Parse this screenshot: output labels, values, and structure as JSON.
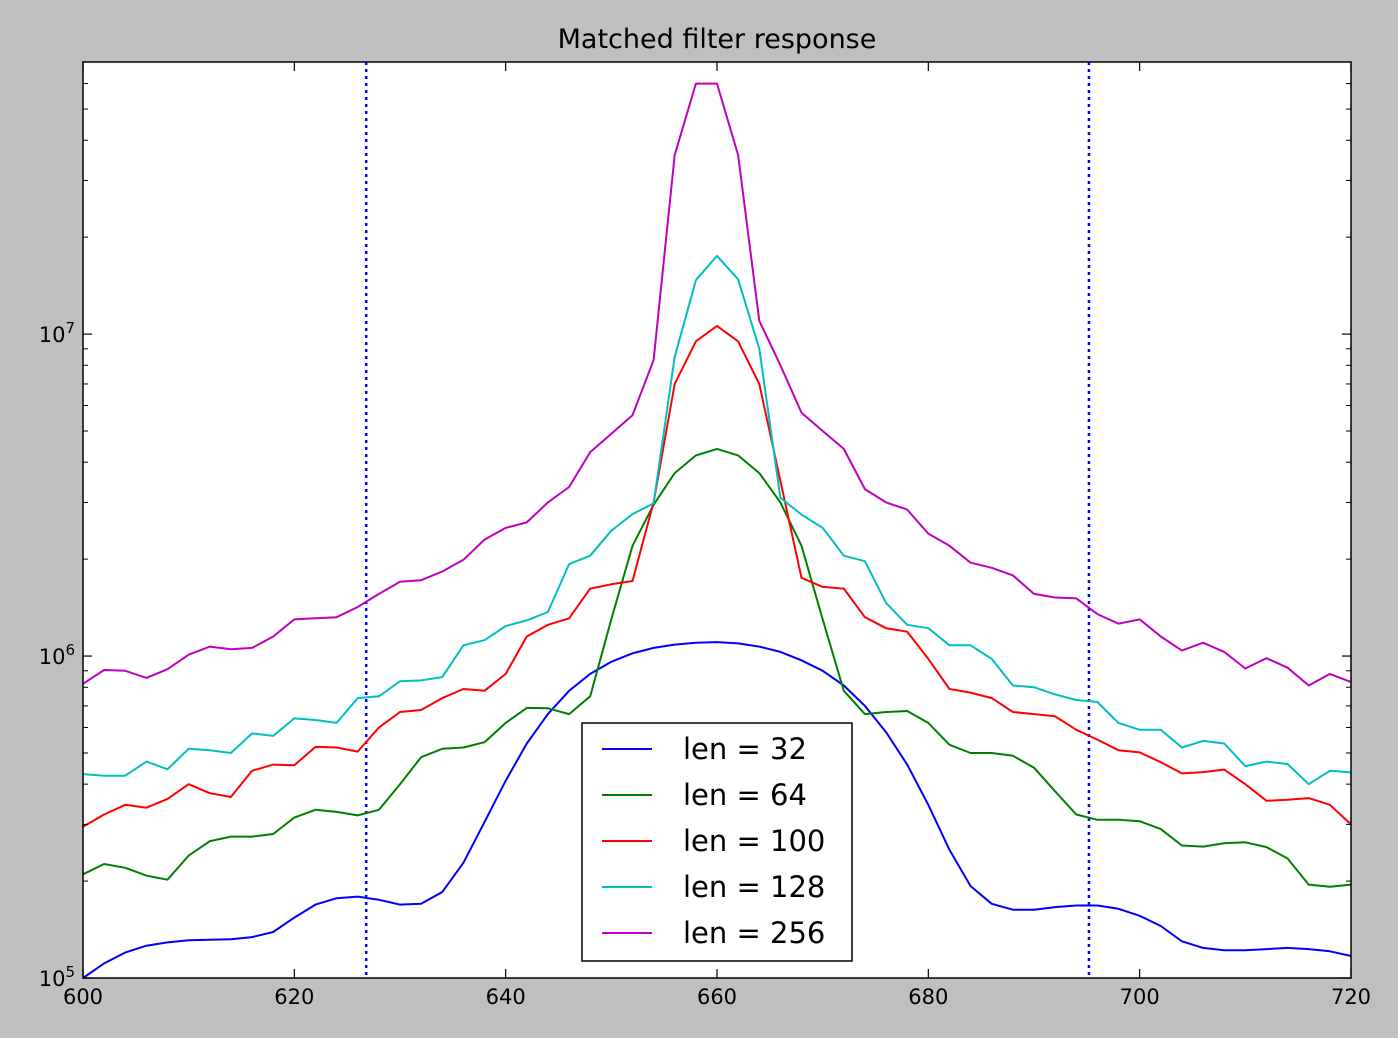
{
  "chart_data": {
    "type": "line",
    "title": "Matched filter response",
    "xlabel": "",
    "ylabel": "",
    "xlim": [
      600,
      720
    ],
    "ylim": [
      100000,
      70000000
    ],
    "yscale": "log",
    "grid": false,
    "legend_position": "lower-center",
    "x_ticks": [
      600,
      620,
      640,
      660,
      680,
      700,
      720
    ],
    "x_tick_labels": [
      "600",
      "620",
      "640",
      "660",
      "680",
      "700",
      "720"
    ],
    "y_ticks": [
      {
        "value": 100000,
        "base": "10",
        "exp": "5"
      },
      {
        "value": 1000000,
        "base": "10",
        "exp": "6"
      },
      {
        "value": 10000000,
        "base": "10",
        "exp": "7"
      }
    ],
    "vlines": [
      {
        "x": 626.8,
        "color": "#0000ff",
        "style": "dotted"
      },
      {
        "x": 695.2,
        "color": "#0000ff",
        "style": "dotted"
      }
    ],
    "x": [
      600,
      602,
      604,
      606,
      608,
      610,
      612,
      614,
      616,
      618,
      620,
      622,
      624,
      626,
      628,
      630,
      632,
      634,
      636,
      638,
      640,
      642,
      644,
      646,
      648,
      650,
      652,
      654,
      656,
      658,
      660,
      662,
      664,
      666,
      668,
      670,
      672,
      674,
      676,
      678,
      680,
      682,
      684,
      686,
      688,
      690,
      692,
      694,
      696,
      698,
      700,
      702,
      704,
      706,
      708,
      710,
      712,
      714,
      716,
      718,
      720
    ],
    "series": [
      {
        "name": "len = 32",
        "color": "#0000ff",
        "values": [
          100000,
          111000,
          120000,
          126000,
          129000,
          131000,
          131500,
          132000,
          134000,
          139000,
          154000,
          169000,
          177000,
          179000,
          175000,
          169000,
          170000,
          185000,
          228000,
          305000,
          410000,
          535000,
          660000,
          780000,
          880000,
          960000,
          1020000,
          1060000,
          1085000,
          1100000,
          1105000,
          1095000,
          1070000,
          1030000,
          970000,
          900000,
          810000,
          700000,
          580000,
          460000,
          345000,
          250000,
          193000,
          170000,
          163000,
          163000,
          166000,
          168000,
          168000,
          164000,
          156000,
          145000,
          130000,
          124000,
          122000,
          122000,
          123000,
          124000,
          123000,
          121000,
          117000
        ]
      },
      {
        "name": "len = 64",
        "color": "#008000",
        "values": [
          210000,
          226000,
          220000,
          208000,
          202000,
          240000,
          266000,
          275000,
          275000,
          280000,
          315000,
          333000,
          328000,
          320000,
          333000,
          400000,
          485000,
          515000,
          520000,
          540000,
          620000,
          690000,
          688000,
          660000,
          750000,
          1300000,
          2200000,
          2950000,
          3700000,
          4200000,
          4400000,
          4200000,
          3700000,
          3000000,
          2200000,
          1300000,
          780000,
          660000,
          670000,
          675000,
          620000,
          530000,
          500000,
          500000,
          490000,
          450000,
          380000,
          322000,
          310000,
          310000,
          307000,
          290000,
          258000,
          256000,
          262000,
          264000,
          255000,
          235000,
          195000,
          192000,
          195000
        ]
      },
      {
        "name": "len = 100",
        "color": "#ff0000",
        "values": [
          295000,
          322000,
          345000,
          338000,
          360000,
          400000,
          375000,
          365000,
          440000,
          460000,
          458000,
          522000,
          520000,
          505000,
          600000,
          670000,
          680000,
          740000,
          790000,
          780000,
          880000,
          1150000,
          1250000,
          1310000,
          1620000,
          1670000,
          1710000,
          3000000,
          7000000,
          9500000,
          10600000,
          9500000,
          7000000,
          3500000,
          1750000,
          1640000,
          1620000,
          1320000,
          1220000,
          1190000,
          980000,
          790000,
          770000,
          740000,
          670000,
          660000,
          650000,
          590000,
          550000,
          510000,
          502000,
          468000,
          432000,
          436000,
          444000,
          400000,
          355000,
          358000,
          362000,
          345000,
          300000
        ]
      },
      {
        "name": "len = 128",
        "color": "#00bfbf",
        "values": [
          430000,
          425000,
          425000,
          470000,
          445000,
          515000,
          510000,
          500000,
          575000,
          565000,
          640000,
          633000,
          620000,
          740000,
          750000,
          835000,
          840000,
          860000,
          1080000,
          1120000,
          1240000,
          1290000,
          1370000,
          1930000,
          2050000,
          2450000,
          2760000,
          2980000,
          8500000,
          14700000,
          17500000,
          14800000,
          9000000,
          3100000,
          2750000,
          2500000,
          2050000,
          1970000,
          1460000,
          1250000,
          1220000,
          1080000,
          1080000,
          980000,
          810000,
          800000,
          760000,
          730000,
          720000,
          620000,
          590000,
          590000,
          520000,
          545000,
          535000,
          455000,
          470000,
          462000,
          400000,
          440000,
          435000
        ]
      },
      {
        "name": "len = 256",
        "color": "#bf00bf",
        "values": [
          820000,
          905000,
          900000,
          855000,
          910000,
          1010000,
          1070000,
          1050000,
          1060000,
          1150000,
          1300000,
          1310000,
          1320000,
          1420000,
          1560000,
          1700000,
          1720000,
          1830000,
          1990000,
          2300000,
          2500000,
          2600000,
          3000000,
          3350000,
          4300000,
          4900000,
          5600000,
          8300000,
          36000000,
          60000000,
          60000000,
          36000000,
          11000000,
          8000000,
          5700000,
          5000000,
          4400000,
          3300000,
          3000000,
          2850000,
          2400000,
          2200000,
          1950000,
          1880000,
          1780000,
          1560000,
          1520000,
          1510000,
          1350000,
          1260000,
          1300000,
          1150000,
          1040000,
          1100000,
          1030000,
          915000,
          985000,
          920000,
          810000,
          880000,
          830000
        ]
      }
    ]
  }
}
